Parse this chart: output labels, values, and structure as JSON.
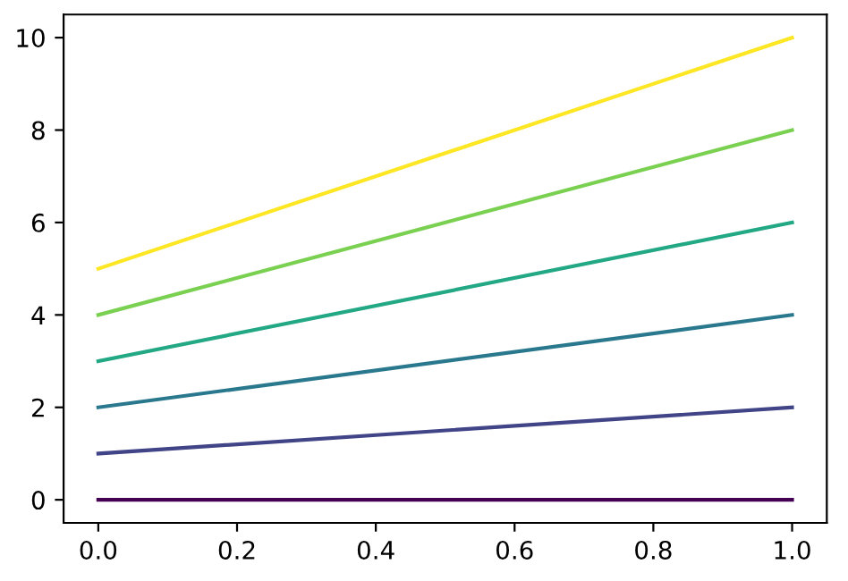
{
  "chart_data": {
    "type": "line",
    "x": [
      0,
      1
    ],
    "series": [
      {
        "color": "#440154",
        "values": [
          0,
          0
        ]
      },
      {
        "color": "#414487",
        "values": [
          1,
          2
        ]
      },
      {
        "color": "#2a788e",
        "values": [
          2,
          4
        ]
      },
      {
        "color": "#22a884",
        "values": [
          3,
          6
        ]
      },
      {
        "color": "#7ad151",
        "values": [
          4,
          8
        ]
      },
      {
        "color": "#fde725",
        "values": [
          5,
          10
        ]
      }
    ],
    "xlim": [
      -0.05,
      1.05
    ],
    "ylim": [
      -0.5,
      10.5
    ],
    "xticks": [
      {
        "value": 0,
        "label": "0.0"
      },
      {
        "value": 0.2,
        "label": "0.2"
      },
      {
        "value": 0.4,
        "label": "0.4"
      },
      {
        "value": 0.6,
        "label": "0.6"
      },
      {
        "value": 0.8,
        "label": "0.8"
      },
      {
        "value": 1,
        "label": "1.0"
      }
    ],
    "yticks": [
      0,
      2,
      4,
      6,
      8,
      10
    ],
    "grid": false
  }
}
